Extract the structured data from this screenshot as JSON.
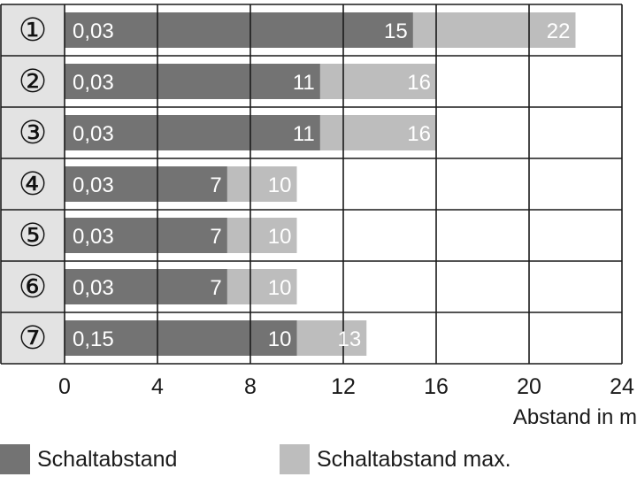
{
  "chart_data": {
    "type": "bar",
    "orientation": "horizontal",
    "stacked_overlay": true,
    "categories": [
      "①",
      "②",
      "③",
      "④",
      "⑤",
      "⑥",
      "⑦"
    ],
    "row_start_labels": [
      "0,03",
      "0,03",
      "0,03",
      "0,03",
      "0,03",
      "0,03",
      "0,15"
    ],
    "series": [
      {
        "name": "Schaltabstand",
        "values": [
          15,
          11,
          11,
          7,
          7,
          7,
          10
        ],
        "labels": [
          "15",
          "11",
          "11",
          "7",
          "7",
          "7",
          "10"
        ],
        "color": "#737373"
      },
      {
        "name": "Schaltabstand max.",
        "values": [
          22,
          16,
          16,
          10,
          10,
          10,
          13
        ],
        "labels": [
          "22",
          "16",
          "16",
          "10",
          "10",
          "10",
          "13"
        ],
        "color": "#bdbdbd"
      }
    ],
    "xticks": [
      "0",
      "4",
      "8",
      "12",
      "16",
      "20",
      "24"
    ],
    "xtick_values": [
      0,
      4,
      8,
      12,
      16,
      20,
      24
    ],
    "xlim": [
      0,
      24
    ],
    "xlabel": "Abstand in m",
    "grid": true,
    "legend_position": "bottom"
  },
  "colors": {
    "primary": "#737373",
    "secondary": "#bdbdbd",
    "category_panel": "#e3e3e3",
    "grid": "#1a1a1a"
  }
}
